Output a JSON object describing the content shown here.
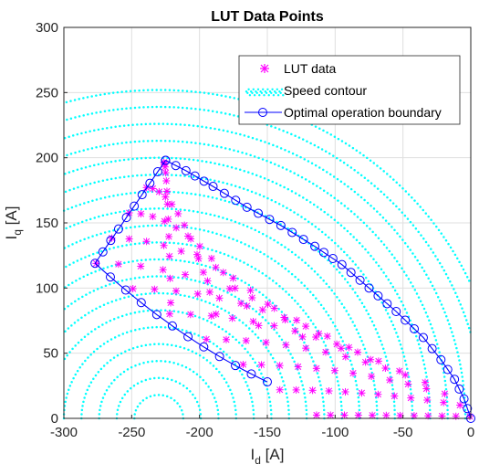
{
  "chart_data": {
    "type": "scatter",
    "title": "LUT Data Points",
    "xlabel": {
      "main": "I",
      "sub": "d",
      "unit": " [A]"
    },
    "ylabel": {
      "main": "I",
      "sub": "q",
      "unit": " [A]"
    },
    "xlim": [
      -300,
      0
    ],
    "ylim": [
      0,
      300
    ],
    "xticks": [
      "-300",
      "-250",
      "-200",
      "-150",
      "-100",
      "-50",
      "0"
    ],
    "yticks": [
      "0",
      "50",
      "100",
      "150",
      "200",
      "250",
      "300"
    ],
    "grid": true,
    "legend": {
      "placement": "top-right",
      "entries": [
        "LUT data",
        "Speed contour",
        "Optimal operation boundary"
      ]
    },
    "colors": {
      "lut": "#ff00ff",
      "contour": "#00ffff",
      "boundary": "#0000ff",
      "black": "#000000",
      "grid": "#dfdfdf"
    },
    "contour_center": [
      -230,
      0
    ],
    "contour_radii": [
      18,
      31,
      44,
      57,
      70,
      83,
      96,
      109,
      122,
      135,
      148,
      161,
      174,
      187,
      200,
      213,
      226,
      239,
      252
    ],
    "boundary": {
      "top": [
        -225,
        198
      ],
      "left": [
        -277,
        119
      ],
      "max_torque_end": [
        -150,
        28
      ],
      "origin": [
        0,
        0
      ]
    },
    "lut_grid": {
      "id_steps": 12,
      "iq_steps": 11
    }
  }
}
